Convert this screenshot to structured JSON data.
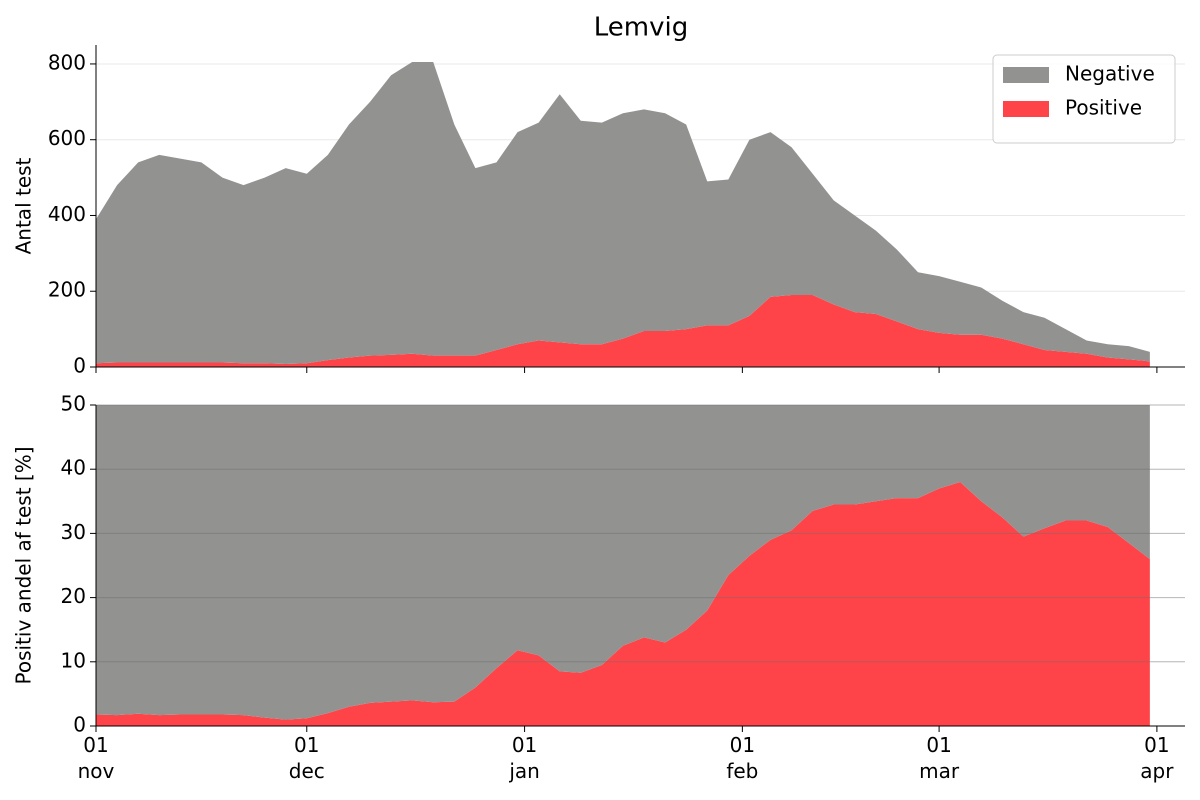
{
  "chart_data": [
    {
      "type": "area",
      "title": "Lemvig",
      "ylabel": "Antal test",
      "x": [
        0,
        3,
        6,
        9,
        12,
        15,
        18,
        21,
        24,
        27,
        30,
        33,
        36,
        39,
        42,
        45,
        48,
        51,
        54,
        57,
        60,
        63,
        66,
        69,
        72,
        75,
        78,
        81,
        84,
        87,
        90,
        93,
        96,
        99,
        102,
        105,
        108,
        111,
        114,
        117,
        120,
        123,
        126,
        129,
        132,
        135,
        138,
        141,
        144,
        147,
        150
      ],
      "series": [
        {
          "name": "Positive",
          "color": "#ff4449",
          "values": [
            10,
            12,
            12,
            12,
            12,
            12,
            12,
            10,
            10,
            8,
            10,
            18,
            25,
            30,
            32,
            35,
            30,
            30,
            30,
            45,
            60,
            70,
            65,
            60,
            60,
            75,
            95,
            95,
            100,
            110,
            110,
            135,
            185,
            190,
            190,
            165,
            145,
            140,
            120,
            100,
            90,
            85,
            85,
            75,
            60,
            45,
            40,
            35,
            25,
            20,
            15
          ]
        },
        {
          "name": "Negative",
          "color": "#929391",
          "values": [
            380,
            468,
            528,
            548,
            538,
            528,
            488,
            470,
            490,
            517,
            500,
            542,
            615,
            670,
            738,
            770,
            775,
            610,
            495,
            495,
            560,
            575,
            655,
            590,
            585,
            595,
            585,
            575,
            540,
            380,
            385,
            465,
            435,
            390,
            320,
            275,
            255,
            220,
            190,
            150,
            150,
            140,
            125,
            100,
            85,
            85,
            60,
            35,
            35,
            35,
            25
          ]
        }
      ],
      "xlim": [
        0,
        155
      ],
      "ylim": [
        0,
        850
      ],
      "yticks": [
        0,
        200,
        400,
        600,
        800
      ],
      "grid": true,
      "legend": "upper right"
    },
    {
      "type": "area",
      "ylabel": "Positiv andel af test [%]",
      "x": [
        0,
        3,
        6,
        9,
        12,
        15,
        18,
        21,
        24,
        27,
        30,
        33,
        36,
        39,
        42,
        45,
        48,
        51,
        54,
        57,
        60,
        63,
        66,
        69,
        72,
        75,
        78,
        81,
        84,
        87,
        90,
        93,
        96,
        99,
        102,
        105,
        108,
        111,
        114,
        117,
        120,
        123,
        126,
        129,
        132,
        135,
        138,
        141,
        144,
        147,
        150
      ],
      "series": [
        {
          "name": "Positive",
          "color": "#ff4449",
          "values": [
            1.8,
            1.7,
            1.9,
            1.7,
            1.8,
            1.8,
            1.8,
            1.7,
            1.3,
            1.0,
            1.2,
            2.0,
            3.0,
            3.6,
            3.8,
            4.0,
            3.7,
            3.8,
            6.0,
            9.0,
            11.8,
            11.0,
            8.5,
            8.3,
            9.5,
            12.5,
            13.8,
            13.0,
            15.0,
            18.0,
            23.5,
            26.5,
            29.0,
            30.5,
            33.5,
            34.5,
            34.5,
            35.0,
            35.5,
            35.5,
            37.0,
            38.0,
            35.0,
            32.5,
            29.5,
            30.8,
            32.0,
            32.0,
            31.0,
            28.5,
            26.0
          ]
        },
        {
          "name": "Negative",
          "color": "#929391",
          "values": [
            98.2,
            98.3,
            98.1,
            98.3,
            98.2,
            98.2,
            98.2,
            98.3,
            98.7,
            99.0,
            98.8,
            98.0,
            97.0,
            96.4,
            96.2,
            96.0,
            96.3,
            96.2,
            94.0,
            91.0,
            88.2,
            89.0,
            91.5,
            91.7,
            90.5,
            87.5,
            86.2,
            87.0,
            85.0,
            82.0,
            76.5,
            73.5,
            71.0,
            69.5,
            66.5,
            65.5,
            65.5,
            65.0,
            64.5,
            64.5,
            63.0,
            62.0,
            65.0,
            67.5,
            70.5,
            69.2,
            68.0,
            68.0,
            69.0,
            71.5,
            74.0
          ]
        }
      ],
      "xlim": [
        0,
        155
      ],
      "ylim": [
        0,
        50
      ],
      "yticks": [
        0,
        10,
        20,
        30,
        40,
        50
      ],
      "xticks": [
        {
          "value": 0,
          "label": "01\nnov"
        },
        {
          "value": 30,
          "label": "01\ndec"
        },
        {
          "value": 61,
          "label": "01\njan"
        },
        {
          "value": 92,
          "label": "01\nfeb"
        },
        {
          "value": 120,
          "label": "01\nmar"
        },
        {
          "value": 151,
          "label": "01\napr"
        }
      ],
      "grid": true
    }
  ]
}
